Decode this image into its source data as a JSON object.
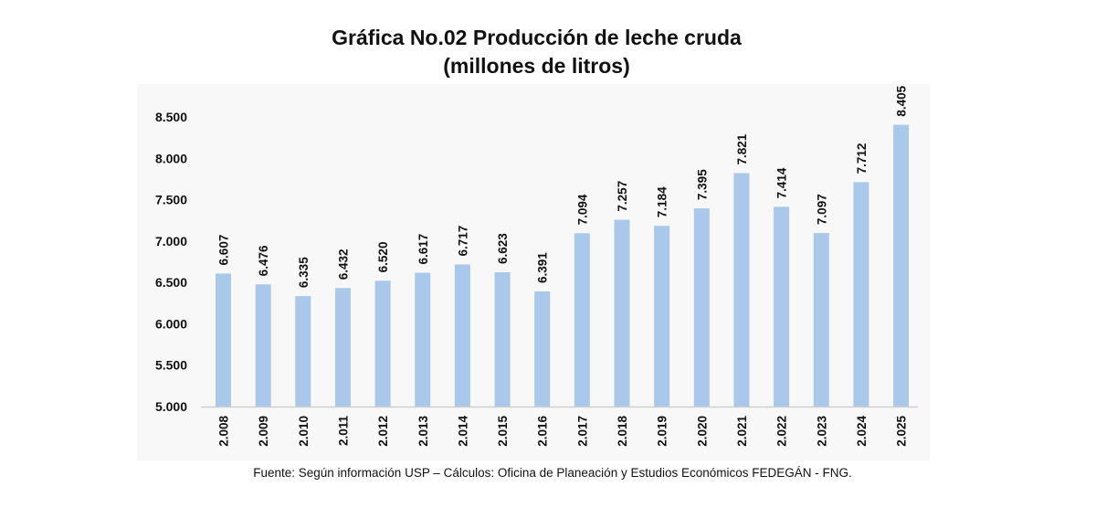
{
  "chart_data": {
    "type": "bar",
    "title": "Gráfica No.02 Producción de leche cruda",
    "subtitle": "(millones de litros)",
    "xlabel": "",
    "ylabel": "",
    "categories": [
      "2.008",
      "2.009",
      "2.010",
      "2.011",
      "2.012",
      "2.013",
      "2.014",
      "2.015",
      "2.016",
      "2.017",
      "2.018",
      "2.019",
      "2.020",
      "2.021",
      "2.022",
      "2.023",
      "2.024",
      "2.025"
    ],
    "values": [
      6607,
      6476,
      6335,
      6432,
      6520,
      6617,
      6717,
      6623,
      6391,
      7094,
      7257,
      7184,
      7395,
      7821,
      7414,
      7097,
      7712,
      8405
    ],
    "value_labels": [
      "6.607",
      "6.476",
      "6.335",
      "6.432",
      "6.520",
      "6.617",
      "6.717",
      "6.623",
      "6.391",
      "7.094",
      "7.257",
      "7.184",
      "7.395",
      "7.821",
      "7.414",
      "7.097",
      "7.712",
      "8.405"
    ],
    "ylim": [
      5000,
      8500
    ],
    "yticks": [
      5000,
      5500,
      6000,
      6500,
      7000,
      7500,
      8000,
      8500
    ],
    "ytick_labels": [
      "5.000",
      "5.500",
      "6.000",
      "6.500",
      "7.000",
      "7.500",
      "8.000",
      "8.500"
    ],
    "grid": false,
    "legend": "none",
    "bar_color": "#a9c8ea"
  },
  "footer": {
    "source": "Fuente: Según información USP – Cálculos: Oficina de Planeación y Estudios Económicos FEDEGÁN - FNG."
  }
}
